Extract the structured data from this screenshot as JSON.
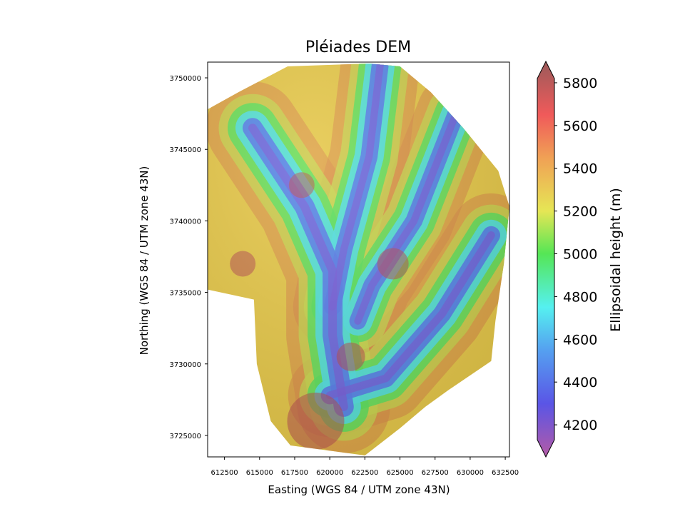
{
  "chart_data": {
    "type": "heatmap",
    "title": "Pléiades DEM",
    "xlabel": "Easting (WGS 84 / UTM zone 43N)",
    "ylabel": "Northing (WGS 84 / UTM zone 43N)",
    "xlim": [
      611300,
      632800
    ],
    "ylim": [
      3723500,
      3751100
    ],
    "xticks": [
      612500,
      615000,
      617500,
      620000,
      622500,
      625000,
      627500,
      630000,
      632500
    ],
    "yticks": [
      3725000,
      3730000,
      3735000,
      3740000,
      3745000,
      3750000
    ],
    "grid": false,
    "colorbar": {
      "label": "Ellipsoidal height (m)",
      "range": [
        4050,
        5900
      ],
      "ticks": [
        4200,
        4400,
        4600,
        4800,
        5000,
        5200,
        5400,
        5600,
        5800
      ],
      "extend": "both",
      "colormap_stops": [
        {
          "value": 4050,
          "color": "#b45aa6"
        },
        {
          "value": 4300,
          "color": "#5a55e6"
        },
        {
          "value": 4550,
          "color": "#55a0f0"
        },
        {
          "value": 4750,
          "color": "#55f0f0"
        },
        {
          "value": 5000,
          "color": "#55e655"
        },
        {
          "value": 5200,
          "color": "#e6e655"
        },
        {
          "value": 5450,
          "color": "#f0a055"
        },
        {
          "value": 5650,
          "color": "#f05a5a"
        },
        {
          "value": 5900,
          "color": "#9b5a5a"
        }
      ]
    },
    "valley_axes": [
      {
        "name": "",
        "points": [
          [
            614500,
            3746500
          ],
          [
            618200,
            3741000
          ],
          [
            620200,
            3736500
          ],
          [
            620200,
            3732000
          ],
          [
            621000,
            3727000
          ]
        ]
      },
      {
        "name": "",
        "points": [
          [
            623600,
            3751000
          ],
          [
            622800,
            3744500
          ],
          [
            621000,
            3738000
          ],
          [
            620200,
            3734000
          ]
        ]
      },
      {
        "name": "",
        "points": [
          [
            629000,
            3747500
          ],
          [
            626000,
            3740000
          ],
          [
            623000,
            3735500
          ],
          [
            622000,
            3733000
          ]
        ]
      },
      {
        "name": "",
        "points": [
          [
            631500,
            3739000
          ],
          [
            628000,
            3733500
          ],
          [
            624000,
            3729000
          ],
          [
            620000,
            3727800
          ]
        ]
      }
    ]
  }
}
